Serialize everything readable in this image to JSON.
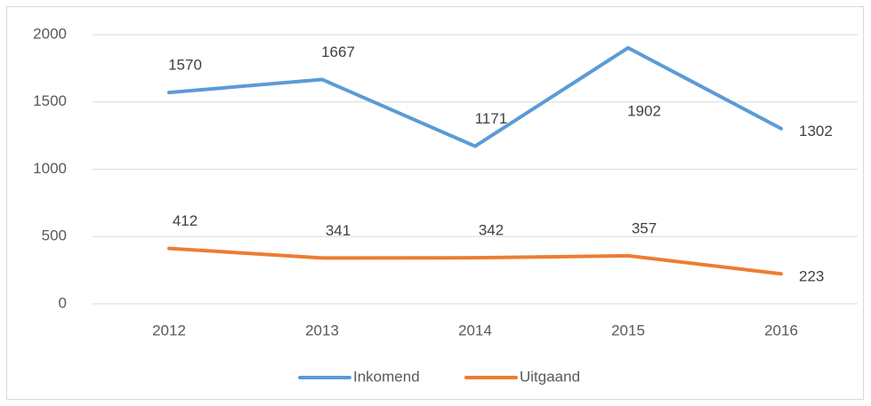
{
  "chart_data": {
    "type": "line",
    "categories": [
      "2012",
      "2013",
      "2014",
      "2015",
      "2016"
    ],
    "series": [
      {
        "name": "Inkomend",
        "color": "#5b9bd5",
        "values": [
          1570,
          1667,
          1171,
          1902,
          1302
        ]
      },
      {
        "name": "Uitgaand",
        "color": "#ed7d31",
        "values": [
          412,
          341,
          342,
          357,
          223
        ]
      }
    ],
    "ylim": [
      0,
      2000
    ],
    "yticks": [
      0,
      500,
      1000,
      1500,
      2000
    ],
    "grid": true,
    "legend": "bottom"
  }
}
